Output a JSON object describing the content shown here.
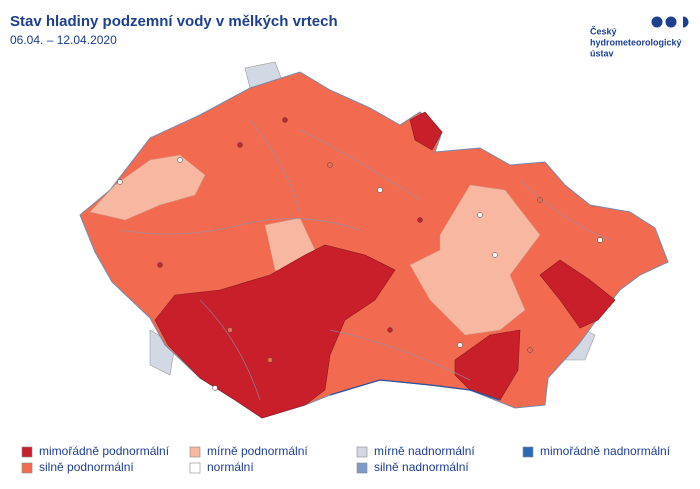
{
  "header": {
    "title": "Stav hladiny podzemní vody v mělkých vrtech",
    "subtitle": "06.04. – 12.04.2020"
  },
  "logo": {
    "lines": [
      "Český",
      "hydrometeorologický",
      "ústav"
    ]
  },
  "legend": {
    "items": [
      {
        "label": "mimořádně podnormální",
        "color": "#c81f2b"
      },
      {
        "label": "mírně podnormální",
        "color": "#f7b7a0"
      },
      {
        "label": "mírně nadnormální",
        "color": "#d3d9e4"
      },
      {
        "label": "mimořádně nadnormální",
        "color": "#2c6bb3"
      },
      {
        "label": "silně podnormální",
        "color": "#f26b50"
      },
      {
        "label": "normální",
        "color": "#ffffff"
      },
      {
        "label": "silně nadnormální",
        "color": "#7f9bc6"
      }
    ]
  }
}
